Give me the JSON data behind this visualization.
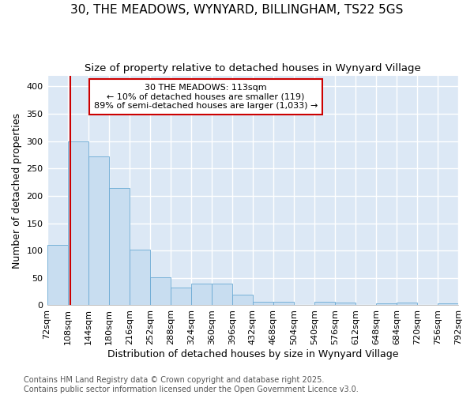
{
  "title": "30, THE MEADOWS, WYNYARD, BILLINGHAM, TS22 5GS",
  "subtitle": "Size of property relative to detached houses in Wynyard Village",
  "xlabel": "Distribution of detached houses by size in Wynyard Village",
  "ylabel": "Number of detached properties",
  "bin_edges": [
    72,
    108,
    144,
    180,
    216,
    252,
    288,
    324,
    360,
    396,
    432,
    468,
    504,
    540,
    576,
    612,
    648,
    684,
    720,
    756,
    792
  ],
  "bar_heights": [
    110,
    300,
    272,
    214,
    102,
    51,
    32,
    40,
    40,
    20,
    7,
    7,
    0,
    7,
    5,
    0,
    4,
    5,
    0,
    4
  ],
  "bar_facecolor": "#c8ddf0",
  "bar_edgecolor": "#6aaad4",
  "vline_x": 113,
  "vline_color": "#cc0000",
  "annotation_line1": "30 THE MEADOWS: 113sqm",
  "annotation_line2": "← 10% of detached houses are smaller (119)",
  "annotation_line3": "89% of semi-detached houses are larger (1,033) →",
  "annotation_box_edgecolor": "#cc0000",
  "annotation_box_facecolor": "#ffffff",
  "ylim": [
    0,
    420
  ],
  "yticks": [
    0,
    50,
    100,
    150,
    200,
    250,
    300,
    350,
    400
  ],
  "plot_bg_color": "#dce8f5",
  "fig_bg_color": "#ffffff",
  "grid_color": "#ffffff",
  "footer_text": "Contains HM Land Registry data © Crown copyright and database right 2025.\nContains public sector information licensed under the Open Government Licence v3.0.",
  "title_fontsize": 11,
  "subtitle_fontsize": 9.5,
  "axis_label_fontsize": 9,
  "tick_fontsize": 8,
  "annotation_fontsize": 8,
  "footer_fontsize": 7
}
